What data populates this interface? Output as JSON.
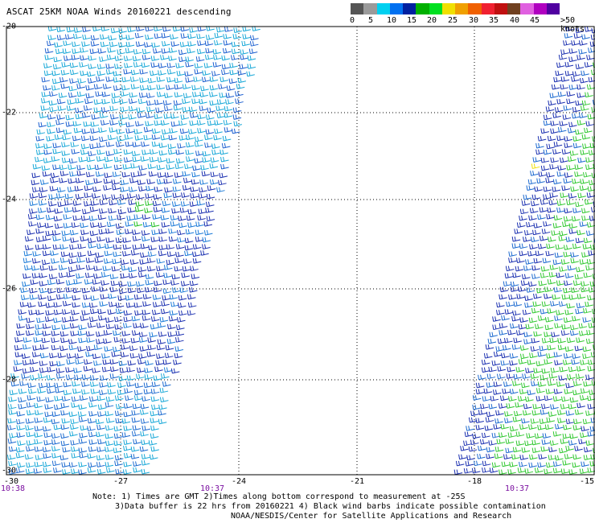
{
  "title": "ASCAT 25KM NOAA Winds 20160221 descending",
  "legend": {
    "colors": [
      "#555555",
      "#9a9a9a",
      "#00d0f0",
      "#0070f0",
      "#0020a0",
      "#00b000",
      "#00e020",
      "#f0e000",
      "#f0a000",
      "#f06000",
      "#f02030",
      "#c01010",
      "#704020",
      "#e060e0",
      "#b000c0",
      "#5000a0"
    ],
    "labels": [
      "0",
      "5",
      "10",
      "15",
      "20",
      "25",
      "30",
      "35",
      "40",
      "45",
      ">50 knots"
    ]
  },
  "map": {
    "lat_labels": [
      "-20",
      "-22",
      "-24",
      "-26",
      "-28",
      "-30"
    ],
    "lon_labels": [
      "-30",
      "-27",
      "-24",
      "-21",
      "-18",
      "-15"
    ],
    "lon_range": [
      -30,
      -15
    ],
    "lat_range": [
      -20,
      -30
    ]
  },
  "times": [
    "10:38",
    "10:37",
    "10:37"
  ],
  "notes": [
    "Note: 1) Times are GMT 2)Times along bottom correspond to measurement at -25S",
    "3)Data buffer is 22 hrs from 20160221 4) Black wind barbs indicate possible contamination",
    "NOAA/NESDIS/Center for Satellite Applications and Research"
  ]
}
